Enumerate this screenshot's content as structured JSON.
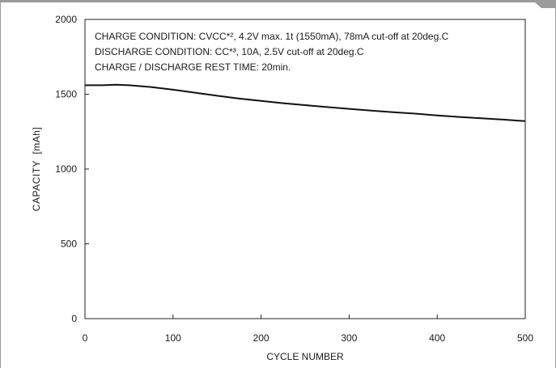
{
  "chart_data": {
    "type": "line",
    "title": "",
    "xlabel": "CYCLE NUMBER",
    "ylabel": "CAPACITY  [mAh]",
    "xlim": [
      0,
      500
    ],
    "ylim": [
      0,
      2000
    ],
    "x_ticks": [
      0,
      100,
      200,
      300,
      400,
      500
    ],
    "y_ticks": [
      0,
      500,
      1000,
      1500,
      2000
    ],
    "grid": false,
    "legend": "none",
    "annotations": [
      "CHARGE CONDITION: CVCC*², 4.2V max. 1t (1550mA), 78mA cut-off at 20deg.C",
      "DISCHARGE CONDITION: CC*³, 10A, 2.5V cut-off at 20deg.C",
      "CHARGE / DISCHARGE REST TIME: 20min."
    ],
    "series": [
      {
        "color": "#111111",
        "points": [
          [
            0,
            1560
          ],
          [
            20,
            1560
          ],
          [
            35,
            1563
          ],
          [
            50,
            1560
          ],
          [
            75,
            1548
          ],
          [
            100,
            1530
          ],
          [
            125,
            1510
          ],
          [
            150,
            1490
          ],
          [
            175,
            1471
          ],
          [
            200,
            1455
          ],
          [
            225,
            1440
          ],
          [
            250,
            1427
          ],
          [
            275,
            1414
          ],
          [
            300,
            1402
          ],
          [
            325,
            1391
          ],
          [
            350,
            1380
          ],
          [
            375,
            1370
          ],
          [
            400,
            1358
          ],
          [
            425,
            1348
          ],
          [
            450,
            1339
          ],
          [
            475,
            1330
          ],
          [
            500,
            1320
          ]
        ]
      }
    ]
  }
}
